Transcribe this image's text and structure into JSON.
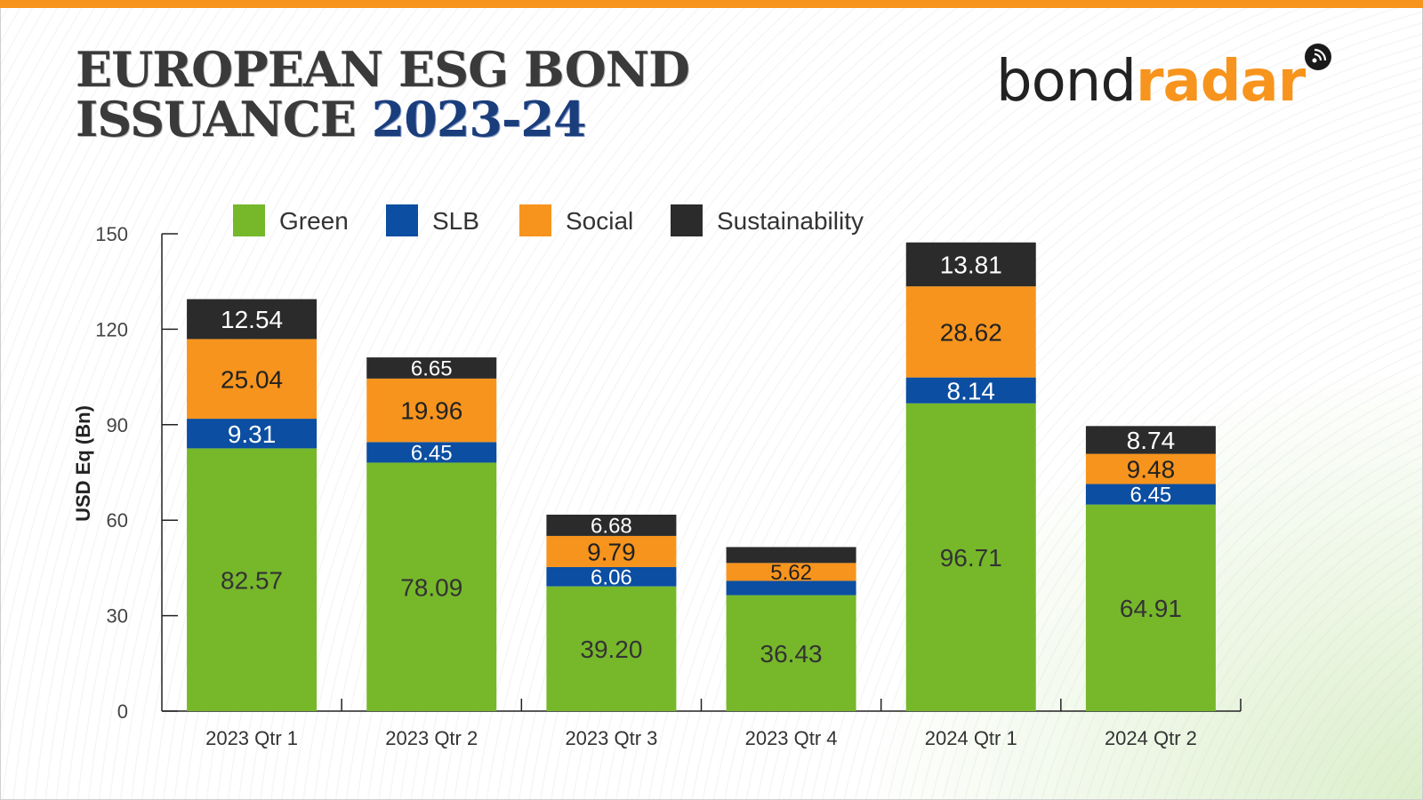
{
  "title": {
    "line1": "EUROPEAN ESG BOND",
    "line2_prefix": "ISSUANCE ",
    "line2_accent": "2023-24"
  },
  "logo": {
    "part1": "bond",
    "part2": "radar",
    "icon": "radar-icon"
  },
  "colors": {
    "top_bar": "#f7941d",
    "title": "#3a3a3a",
    "title_accent": "#1a3d7c",
    "logo_accent": "#f7941d"
  },
  "legend": [
    {
      "label": "Green",
      "color": "#76b82a"
    },
    {
      "label": "SLB",
      "color": "#0b4ea2"
    },
    {
      "label": "Social",
      "color": "#f7941d"
    },
    {
      "label": "Sustainability",
      "color": "#2b2b2b"
    }
  ],
  "chart_data": {
    "type": "bar",
    "stacked": true,
    "title": "",
    "xlabel": "",
    "ylabel": "USD Eq (Bn)",
    "ylim": [
      0,
      150
    ],
    "yticks": [
      0,
      30,
      60,
      90,
      120,
      150
    ],
    "categories": [
      "2023 Qtr 1",
      "2023 Qtr 2",
      "2023 Qtr 3",
      "2023 Qtr 4",
      "2024 Qtr 1",
      "2024 Qtr 2"
    ],
    "series": [
      {
        "name": "Green",
        "color": "#76b82a",
        "label_color": "#333333",
        "values": [
          82.57,
          78.09,
          39.2,
          36.43,
          96.71,
          64.91
        ],
        "labels": [
          "82.57",
          "78.09",
          "39.20",
          "36.43",
          "96.71",
          "64.91"
        ]
      },
      {
        "name": "SLB",
        "color": "#0b4ea2",
        "label_color": "#ffffff",
        "values": [
          9.31,
          6.45,
          6.06,
          4.5,
          8.14,
          6.45
        ],
        "labels": [
          "9.31",
          "6.45",
          "6.06",
          "",
          "8.14",
          "6.45"
        ]
      },
      {
        "name": "Social",
        "color": "#f7941d",
        "label_color": "#222222",
        "values": [
          25.04,
          19.96,
          9.79,
          5.62,
          28.62,
          9.48
        ],
        "labels": [
          "25.04",
          "19.96",
          "9.79",
          "5.62",
          "28.62",
          "9.48"
        ]
      },
      {
        "name": "Sustainability",
        "color": "#2b2b2b",
        "label_color": "#ffffff",
        "values": [
          12.54,
          6.65,
          6.68,
          5.0,
          13.81,
          8.74
        ],
        "labels": [
          "12.54",
          "6.65",
          "6.68",
          "",
          "13.81",
          "8.74"
        ]
      }
    ],
    "legend_position": "top",
    "grid": false
  }
}
